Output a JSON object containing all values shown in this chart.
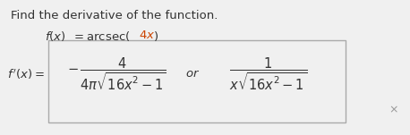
{
  "title": "Find the derivative of the function.",
  "bg_color": "#f0f0f0",
  "text_color": "#333333",
  "orange_color": "#cc4400",
  "box_edge_color": "#aaaaaa",
  "title_fontsize": 9.5,
  "func_fontsize": 9.5,
  "formula_fontsize": 10.5,
  "small_fontsize": 8.5
}
